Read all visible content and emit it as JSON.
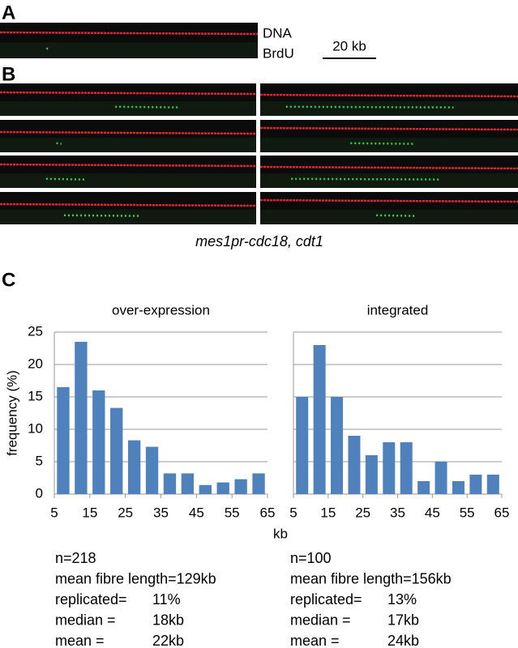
{
  "panels": {
    "a": "A",
    "b": "B",
    "c": "C"
  },
  "legend": {
    "dna": "DNA",
    "brdu": "BrdU",
    "scale": "20 kb"
  },
  "caption": "mes1pr-cdc18, cdt1",
  "x_axis_label": "kb",
  "chart_data": [
    {
      "type": "histogram",
      "title": "over-expression",
      "y_label": "frequency (%)",
      "color": "#4f81bd",
      "grid": true,
      "bins": [
        5,
        10,
        15,
        20,
        25,
        30,
        35,
        40,
        45,
        50,
        55,
        60,
        65
      ],
      "values": [
        16.5,
        23.5,
        16,
        13.3,
        8.3,
        7.3,
        3.2,
        3.2,
        1.4,
        1.8,
        2.3,
        3.2
      ],
      "xlim": [
        5,
        65
      ],
      "xticks": [
        5,
        15,
        25,
        35,
        45,
        55,
        65
      ],
      "ylim": [
        0,
        25
      ],
      "yticks": [
        0,
        5,
        10,
        15,
        20,
        25
      ],
      "stats": [
        [
          "n=218"
        ],
        [
          "mean fibre length=129kb"
        ],
        [
          "replicated=",
          "11%"
        ],
        [
          "median =",
          "18kb"
        ],
        [
          "mean =",
          "22kb"
        ]
      ]
    },
    {
      "type": "histogram",
      "title": "integrated",
      "color": "#4f81bd",
      "grid": true,
      "bins": [
        5,
        10,
        15,
        20,
        25,
        30,
        35,
        40,
        45,
        50,
        55,
        60,
        65
      ],
      "values": [
        15,
        23,
        15,
        9,
        6,
        8,
        8,
        2,
        5,
        2,
        3,
        3
      ],
      "xlim": [
        5,
        65
      ],
      "xticks": [
        5,
        15,
        25,
        35,
        45,
        55,
        65
      ],
      "ylim": [
        0,
        25
      ],
      "yticks": [
        0,
        5,
        10,
        15,
        20,
        25
      ],
      "stats": [
        [
          "n=100"
        ],
        [
          "mean fibre length=156kb"
        ],
        [
          "replicated=",
          "13%"
        ],
        [
          "median =",
          "17kb"
        ],
        [
          "mean =",
          "24kb"
        ]
      ]
    }
  ]
}
